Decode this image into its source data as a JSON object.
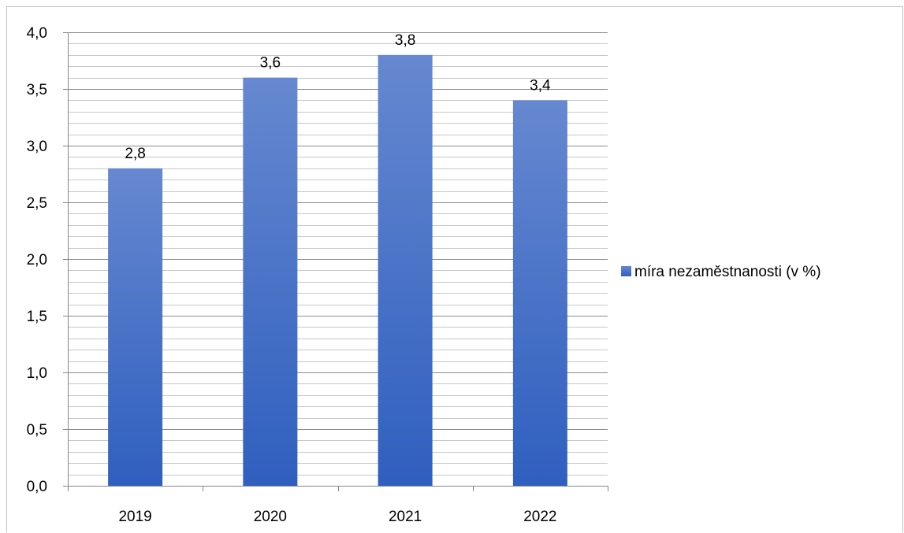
{
  "chart_data": {
    "type": "bar",
    "categories": [
      "2019",
      "2020",
      "2021",
      "2022"
    ],
    "series": [
      {
        "name": "míra nezaměstnanosti (v %)",
        "values": [
          2.8,
          3.6,
          3.8,
          3.4
        ],
        "value_labels": [
          "2,8",
          "3,6",
          "3,8",
          "3,4"
        ],
        "color": "#4472c4"
      }
    ],
    "ylim": [
      0,
      4
    ],
    "yticks": [
      "0,0",
      "0,5",
      "1,0",
      "1,5",
      "2,0",
      "2,5",
      "3,0",
      "3,5",
      "4,0"
    ],
    "grid": true,
    "legend": "right",
    "colors": {
      "bar_top": "#6688d0",
      "bar_bottom": "#2f5fbf",
      "grid": "#a6a6a6",
      "axis": "#868686"
    }
  }
}
